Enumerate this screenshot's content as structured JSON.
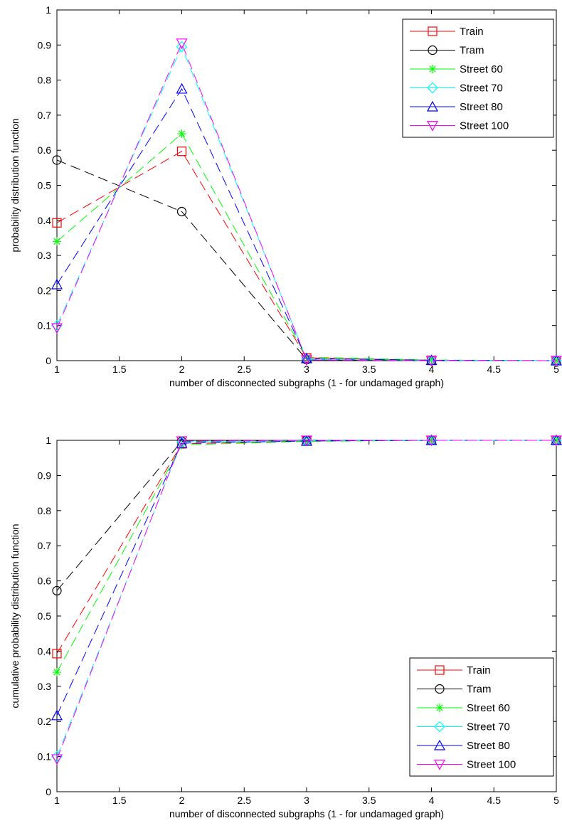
{
  "chart_data": [
    {
      "type": "line",
      "title": "",
      "xlabel": "number of disconnected subgraphs (1 - for undamaged graph)",
      "ylabel": "probability distribution function",
      "xlim": [
        1,
        5
      ],
      "ylim": [
        0,
        1
      ],
      "xticks": [
        "1",
        "1.5",
        "2",
        "2.5",
        "3",
        "3.5",
        "4",
        "4.5",
        "5"
      ],
      "yticks": [
        "0",
        "0.1",
        "0.2",
        "0.3",
        "0.4",
        "0.5",
        "0.6",
        "0.7",
        "0.8",
        "0.9",
        "1"
      ],
      "grid": false,
      "legend_position": "top-right",
      "x": [
        1,
        2,
        3,
        4,
        5
      ],
      "series": [
        {
          "name": "Train",
          "values": [
            0.393,
            0.597,
            0.008,
            0.001,
            0.0
          ],
          "color": "#ff0000",
          "marker": "square"
        },
        {
          "name": "Tram",
          "values": [
            0.572,
            0.425,
            0.003,
            0.0,
            0.0
          ],
          "color": "#000000",
          "marker": "circle"
        },
        {
          "name": "Street 60",
          "values": [
            0.34,
            0.647,
            0.01,
            0.002,
            0.0
          ],
          "color": "#00ff00",
          "marker": "star"
        },
        {
          "name": "Street 70",
          "values": [
            0.1,
            0.895,
            0.004,
            0.001,
            0.0
          ],
          "color": "#00ffff",
          "marker": "diamond"
        },
        {
          "name": "Street 80",
          "values": [
            0.217,
            0.775,
            0.006,
            0.001,
            0.0
          ],
          "color": "#0000ff",
          "marker": "triangle-up"
        },
        {
          "name": "Street 100",
          "values": [
            0.093,
            0.905,
            0.002,
            0.0,
            0.0
          ],
          "color": "#ff00ff",
          "marker": "triangle-down"
        }
      ]
    },
    {
      "type": "line",
      "title": "",
      "xlabel": "number of disconnected subgraphs (1 - for undamaged graph)",
      "ylabel": "cumulative probability distribution function",
      "xlim": [
        1,
        5
      ],
      "ylim": [
        0,
        1
      ],
      "xticks": [
        "1",
        "1.5",
        "2",
        "2.5",
        "3",
        "3.5",
        "4",
        "4.5",
        "5"
      ],
      "yticks": [
        "0",
        "0.1",
        "0.2",
        "0.3",
        "0.4",
        "0.5",
        "0.6",
        "0.7",
        "0.8",
        "0.9",
        "1"
      ],
      "grid": false,
      "legend_position": "bottom-right",
      "x": [
        1,
        2,
        3,
        4,
        5
      ],
      "series": [
        {
          "name": "Train",
          "values": [
            0.393,
            0.99,
            0.998,
            1.0,
            1.0
          ],
          "color": "#ff0000",
          "marker": "square"
        },
        {
          "name": "Tram",
          "values": [
            0.572,
            0.997,
            1.0,
            1.0,
            1.0
          ],
          "color": "#000000",
          "marker": "circle"
        },
        {
          "name": "Street 60",
          "values": [
            0.34,
            0.987,
            0.997,
            1.0,
            1.0
          ],
          "color": "#00ff00",
          "marker": "star"
        },
        {
          "name": "Street 70",
          "values": [
            0.1,
            0.995,
            0.999,
            1.0,
            1.0
          ],
          "color": "#00ffff",
          "marker": "diamond"
        },
        {
          "name": "Street 80",
          "values": [
            0.217,
            0.992,
            0.998,
            1.0,
            1.0
          ],
          "color": "#0000ff",
          "marker": "triangle-up"
        },
        {
          "name": "Street 100",
          "values": [
            0.093,
            0.998,
            1.0,
            1.0,
            1.0
          ],
          "color": "#ff00ff",
          "marker": "triangle-down"
        }
      ]
    }
  ]
}
